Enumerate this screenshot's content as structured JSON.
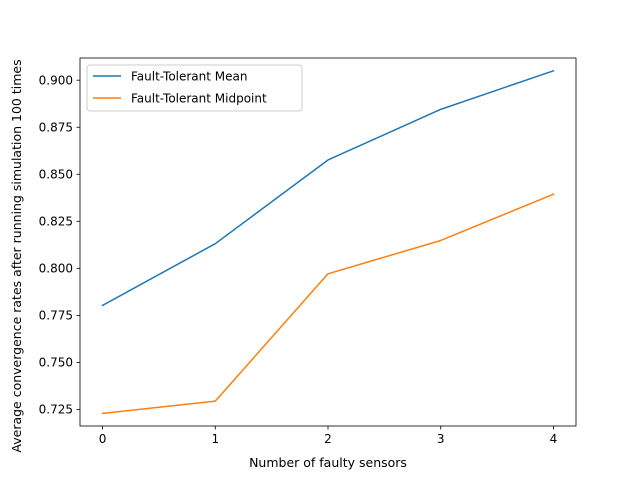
{
  "chart_data": {
    "type": "line",
    "title": "",
    "xlabel": "Number of faulty sensors",
    "ylabel": "Average convergence rates after running simulation 100 times",
    "x": [
      0,
      1,
      2,
      3,
      4
    ],
    "xlim": [
      -0.2,
      4.2
    ],
    "ylim": [
      0.7162,
      0.9118
    ],
    "xticks": [
      "0",
      "1",
      "2",
      "3",
      "4"
    ],
    "yticks": [
      "0.725",
      "0.750",
      "0.775",
      "0.800",
      "0.825",
      "0.850",
      "0.875",
      "0.900"
    ],
    "grid": false,
    "legend_position": "top-left",
    "series": [
      {
        "name": "Fault-Tolerant Mean",
        "color": "#1f77b4",
        "values": [
          0.7803,
          0.8131,
          0.8576,
          0.8845,
          0.905
        ]
      },
      {
        "name": "Fault-Tolerant Midpoint",
        "color": "#ff7f0e",
        "values": [
          0.7229,
          0.7294,
          0.7971,
          0.8148,
          0.8394
        ]
      }
    ]
  }
}
